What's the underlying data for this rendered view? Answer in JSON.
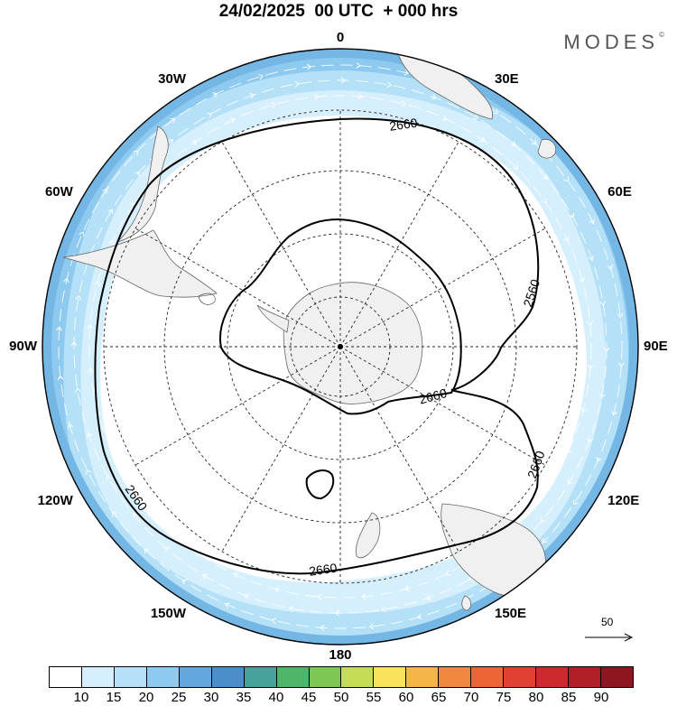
{
  "title": "24/02/2025  00 UTC  + 000 hrs",
  "logo": "MODES",
  "logo_mark": "©",
  "longitude_labels": [
    {
      "text": "0",
      "lon": 0
    },
    {
      "text": "30E",
      "lon": 30
    },
    {
      "text": "60E",
      "lon": 60
    },
    {
      "text": "90E",
      "lon": 90
    },
    {
      "text": "120E",
      "lon": 120
    },
    {
      "text": "150E",
      "lon": 150
    },
    {
      "text": "180",
      "lon": 180
    },
    {
      "text": "150W",
      "lon": -150
    },
    {
      "text": "120W",
      "lon": -120
    },
    {
      "text": "90W",
      "lon": -90
    },
    {
      "text": "60W",
      "lon": -60
    },
    {
      "text": "30W",
      "lon": -30
    }
  ],
  "contour_labels": [
    {
      "text": "2660",
      "lon": 15
    },
    {
      "text": "2560",
      "lon": 70
    },
    {
      "text": "2660",
      "lon": 125
    },
    {
      "text": "2660",
      "lon": 170
    },
    {
      "text": "2660",
      "lon": -120
    },
    {
      "text": "2660",
      "lon": -75
    }
  ],
  "wind_reference": {
    "label": "50"
  },
  "colorbar": {
    "colors": [
      "#ffffff",
      "#d6effd",
      "#b4e0f8",
      "#8ec9f0",
      "#64a7dc",
      "#4a8fca",
      "#45a39b",
      "#4fb56a",
      "#7dc754",
      "#c4dc56",
      "#f8e35a",
      "#f6b54a",
      "#f08840",
      "#ec6634",
      "#e04030",
      "#cc2a2c",
      "#b01e28",
      "#8e1620"
    ],
    "ticks": [
      "10",
      "15",
      "20",
      "25",
      "30",
      "35",
      "40",
      "45",
      "50",
      "55",
      "60",
      "65",
      "70",
      "75",
      "80",
      "85",
      "90"
    ]
  }
}
